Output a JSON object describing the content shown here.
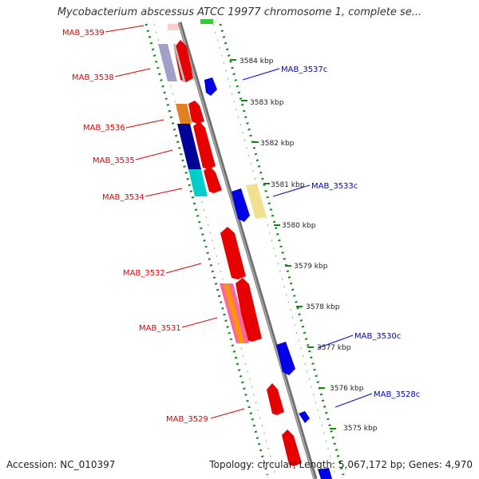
{
  "title": "Mycobacterium abscessus ATCC 19977 chromosome 1, complete se...",
  "accession": "Accession: NC_010397",
  "summary": "Topology: circular; Length: 5,067,172 bp; Genes: 4,970",
  "colors": {
    "forward": "#e60000",
    "reverse": "#0000e6",
    "backbone": "#888888",
    "ticks": "#118811"
  },
  "kbp_labels": [
    "3584 kbp",
    "3583 kbp",
    "3582 kbp",
    "3581 kbp",
    "3580 kbp",
    "3579 kbp",
    "3578 kbp",
    "3577 kbp",
    "3576 kbp",
    "3575 kbp"
  ],
  "gene_labels_forward": [
    "MAB_3539",
    "MAB_3538",
    "MAB_3536",
    "MAB_3535",
    "MAB_3534",
    "MAB_3532",
    "MAB_3531",
    "MAB_3529"
  ],
  "gene_labels_reverse": [
    "MAB_3537c",
    "MAB_3533c",
    "MAB_3530c",
    "MAB_3528c"
  ]
}
